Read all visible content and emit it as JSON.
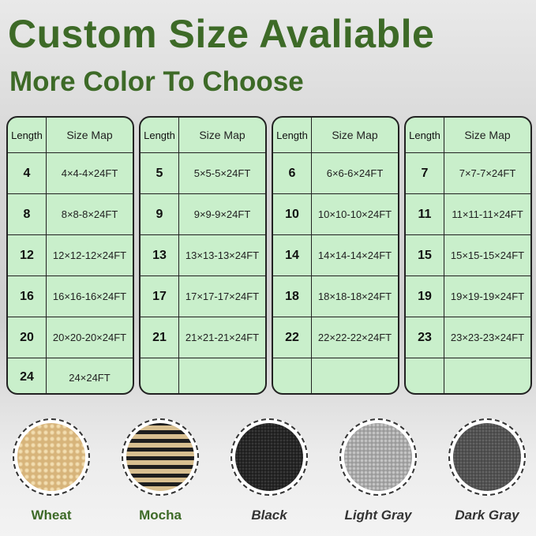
{
  "title": "Custom Size Avaliable",
  "subtitle": "More Color To Choose",
  "table_headers": {
    "length": "Length",
    "size_map": "Size Map"
  },
  "tables": [
    [
      [
        "4",
        "4×4-4×24FT"
      ],
      [
        "8",
        "8×8-8×24FT"
      ],
      [
        "12",
        "12×12-12×24FT"
      ],
      [
        "16",
        "16×16-16×24FT"
      ],
      [
        "20",
        "20×20-20×24FT"
      ],
      [
        "24",
        "24×24FT"
      ]
    ],
    [
      [
        "5",
        "5×5-5×24FT"
      ],
      [
        "9",
        "9×9-9×24FT"
      ],
      [
        "13",
        "13×13-13×24FT"
      ],
      [
        "17",
        "17×17-17×24FT"
      ],
      [
        "21",
        "21×21-21×24FT"
      ],
      [
        "",
        ""
      ]
    ],
    [
      [
        "6",
        "6×6-6×24FT"
      ],
      [
        "10",
        "10×10-10×24FT"
      ],
      [
        "14",
        "14×14-14×24FT"
      ],
      [
        "18",
        "18×18-18×24FT"
      ],
      [
        "22",
        "22×22-22×24FT"
      ],
      [
        "",
        ""
      ]
    ],
    [
      [
        "7",
        "7×7-7×24FT"
      ],
      [
        "11",
        "11×11-11×24FT"
      ],
      [
        "15",
        "15×15-15×24FT"
      ],
      [
        "19",
        "19×19-19×24FT"
      ],
      [
        "23",
        "23×23-23×24FT"
      ],
      [
        "",
        ""
      ]
    ]
  ],
  "colors": [
    {
      "name": "Wheat",
      "hex": "#e2c58f",
      "italic": false
    },
    {
      "name": "Mocha",
      "hex": "#8a7658",
      "italic": false
    },
    {
      "name": "Black",
      "hex": "#2a2a2a",
      "italic": true
    },
    {
      "name": "Light Gray",
      "hex": "#a9a9a9",
      "italic": true
    },
    {
      "name": "Dark Gray",
      "hex": "#555555",
      "italic": true
    }
  ]
}
